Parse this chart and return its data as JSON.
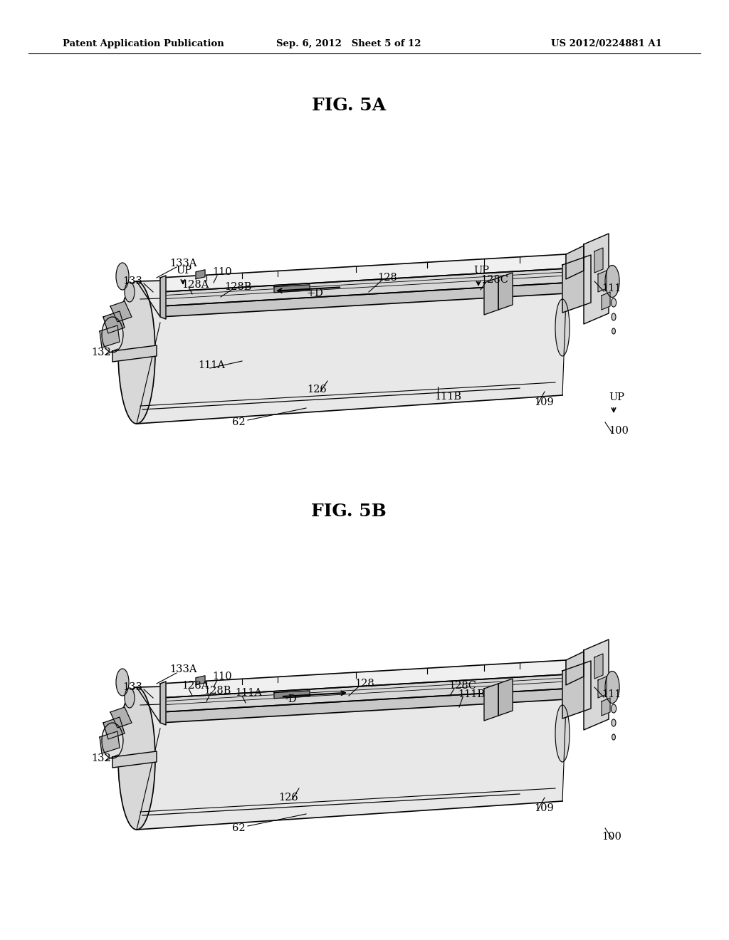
{
  "background_color": "#ffffff",
  "page_width": 10.24,
  "page_height": 13.2,
  "header": {
    "left": "Patent Application Publication",
    "center": "Sep. 6, 2012   Sheet 5 of 12",
    "right": "US 2012/0224881 A1",
    "fontsize": 9.5,
    "fontweight": "bold"
  },
  "fig5a_title": "FIG. 5A",
  "fig5b_title": "FIG. 5B",
  "title_fontsize": 18,
  "label_fontsize": 10.5
}
